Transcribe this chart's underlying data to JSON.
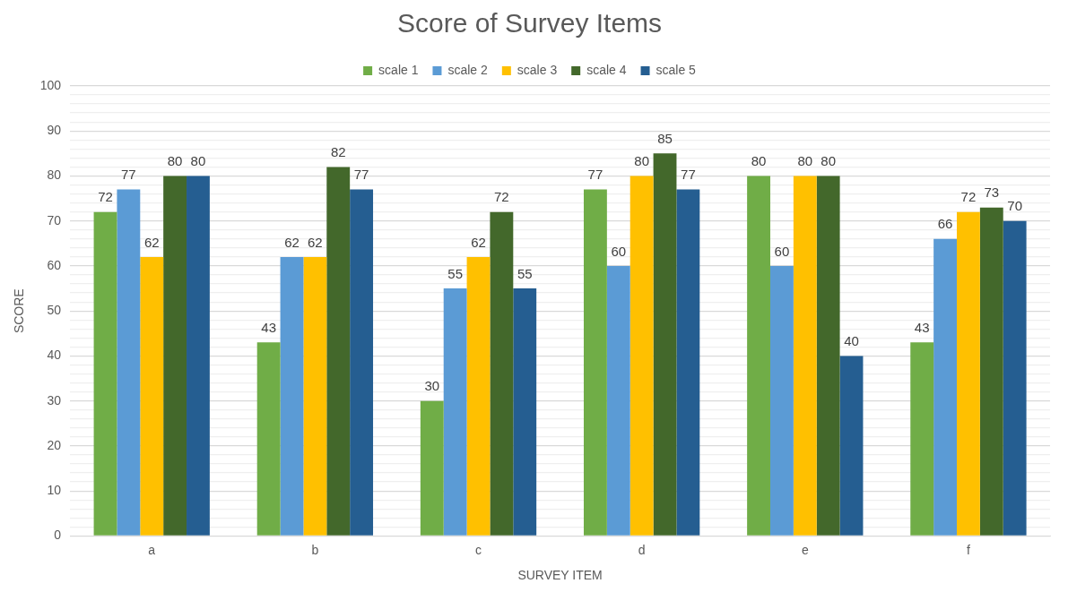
{
  "chart_data": {
    "type": "bar",
    "title": "Score of Survey Items",
    "xlabel": "SURVEY ITEM",
    "ylabel": "SCORE",
    "categories": [
      "a",
      "b",
      "c",
      "d",
      "e",
      "f"
    ],
    "series": [
      {
        "name": "scale 1",
        "color": "#70ad47",
        "values": [
          72,
          43,
          30,
          77,
          80,
          43
        ]
      },
      {
        "name": "scale 2",
        "color": "#5b9bd5",
        "values": [
          77,
          62,
          55,
          60,
          60,
          66
        ]
      },
      {
        "name": "scale 3",
        "color": "#ffc000",
        "values": [
          62,
          62,
          62,
          80,
          80,
          72
        ]
      },
      {
        "name": "scale 4",
        "color": "#43682b",
        "values": [
          80,
          82,
          72,
          85,
          80,
          73
        ]
      },
      {
        "name": "scale 5",
        "color": "#255e91",
        "values": [
          80,
          77,
          55,
          77,
          40,
          70
        ]
      }
    ],
    "ylim": [
      0,
      100
    ],
    "yticks": [
      0,
      {
        "value": 2,
        "label": null
      },
      {
        "value": 4,
        "label": null
      },
      {
        "value": 6,
        "label": null
      },
      {
        "value": 8,
        "label": null
      },
      10,
      {
        "value": 12,
        "label": null
      },
      {
        "value": 14,
        "label": null
      },
      {
        "value": 16,
        "label": null
      },
      {
        "value": 18,
        "label": null
      },
      20,
      {
        "value": 22,
        "label": null
      },
      {
        "value": 24,
        "label": null
      },
      {
        "value": 26,
        "label": null
      },
      {
        "value": 28,
        "label": null
      },
      30,
      {
        "value": 32,
        "label": null
      },
      {
        "value": 34,
        "label": null
      },
      {
        "value": 36,
        "label": null
      },
      {
        "value": 38,
        "label": null
      },
      40,
      {
        "value": 42,
        "label": null
      },
      {
        "value": 44,
        "label": null
      },
      {
        "value": 46,
        "label": null
      },
      {
        "value": 48,
        "label": null
      },
      50,
      {
        "value": 52,
        "label": null
      },
      {
        "value": 54,
        "label": null
      },
      {
        "value": 56,
        "label": null
      },
      {
        "value": 58,
        "label": null
      },
      60,
      {
        "value": 62,
        "label": null
      },
      {
        "value": 64,
        "label": null
      },
      {
        "value": 66,
        "label": null
      },
      {
        "value": 68,
        "label": null
      },
      70,
      {
        "value": 72,
        "label": null
      },
      {
        "value": 74,
        "label": null
      },
      {
        "value": 76,
        "label": null
      },
      {
        "value": 78,
        "label": null
      },
      80,
      {
        "value": 82,
        "label": null
      },
      {
        "value": 84,
        "label": null
      },
      {
        "value": 86,
        "label": null
      },
      {
        "value": 88,
        "label": null
      },
      90,
      {
        "value": 92,
        "label": null
      },
      {
        "value": 94,
        "label": null
      },
      {
        "value": 96,
        "label": null
      },
      {
        "value": 98,
        "label": null
      },
      100
    ],
    "grid": "y",
    "legend": "top",
    "data_labels": true
  }
}
